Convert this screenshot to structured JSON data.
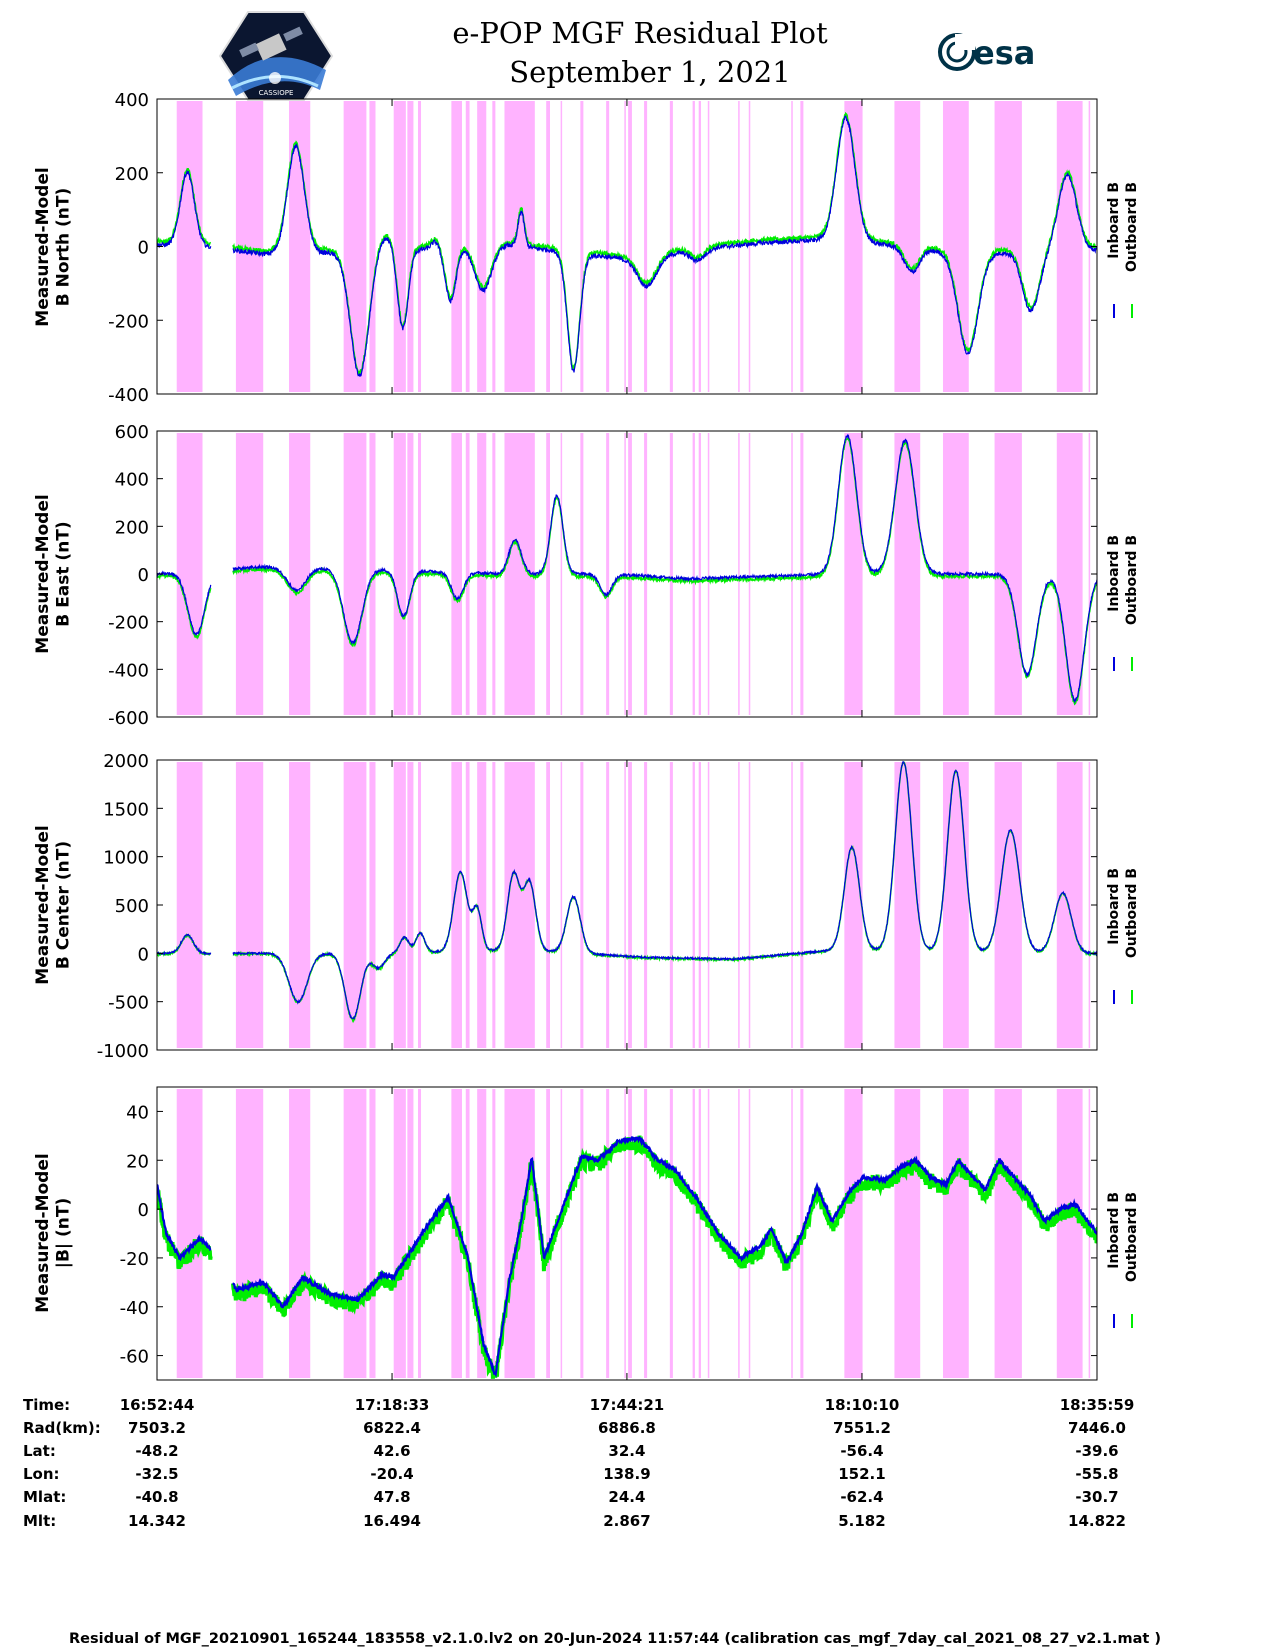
{
  "header": {
    "title": "e-POP MGF Residual Plot",
    "date": "September 1, 2021",
    "logo_left": "CASSIOPE",
    "logo_right": "esa"
  },
  "colors": {
    "inboard": "#0000dd",
    "outboard": "#00ee00",
    "shade": "#ffb3ff",
    "axis": "#000000"
  },
  "legend": {
    "inboard": "Inboard B",
    "outboard": "Outboard B"
  },
  "chart_data": [
    {
      "type": "line",
      "id": "north",
      "ylabel_line1": "Measured-Model",
      "ylabel_line2": "B North (nT)",
      "ylim": [
        -400,
        400
      ],
      "yticks": [
        400,
        200,
        0,
        -200,
        -400
      ],
      "xlim": [
        0,
        6195
      ],
      "series_names": [
        "Inboard B",
        "Outboard B"
      ],
      "signal": {
        "baseline": [
          [
            0,
            5
          ],
          [
            300,
            0
          ],
          [
            700,
            -20
          ],
          [
            1400,
            -15
          ],
          [
            2300,
            5
          ],
          [
            2800,
            -20
          ],
          [
            3200,
            -40
          ],
          [
            3500,
            -10
          ],
          [
            4000,
            10
          ],
          [
            4500,
            20
          ],
          [
            5300,
            -20
          ],
          [
            6195,
            -10
          ]
        ],
        "bumps": [
          [
            200,
            200,
            45
          ],
          [
            915,
            290,
            55
          ],
          [
            1335,
            -335,
            60
          ],
          [
            1505,
            40,
            50
          ],
          [
            1620,
            -215,
            35
          ],
          [
            1835,
            20,
            25
          ],
          [
            1935,
            -145,
            35
          ],
          [
            2150,
            -120,
            55
          ],
          [
            2400,
            95,
            20
          ],
          [
            2745,
            -320,
            40
          ],
          [
            3230,
            -70,
            60
          ],
          [
            3560,
            -30,
            50
          ],
          [
            4540,
            330,
            60
          ],
          [
            4975,
            -65,
            50
          ],
          [
            5345,
            -270,
            65
          ],
          [
            5760,
            -160,
            55
          ],
          [
            6000,
            205,
            60
          ]
        ]
      },
      "outboard_offset": 8,
      "noise": 6
    },
    {
      "type": "line",
      "id": "east",
      "ylabel_line1": "Measured-Model",
      "ylabel_line2": "B East (nT)",
      "ylim": [
        -600,
        600
      ],
      "yticks": [
        600,
        400,
        200,
        0,
        -200,
        -400,
        -600
      ],
      "xlim": [
        0,
        6195
      ],
      "series_names": [
        "Inboard B",
        "Outboard B"
      ],
      "signal": {
        "baseline": [
          [
            0,
            0
          ],
          [
            700,
            30
          ],
          [
            1400,
            20
          ],
          [
            2300,
            0
          ],
          [
            3000,
            0
          ],
          [
            3500,
            -20
          ],
          [
            4500,
            0
          ],
          [
            5300,
            0
          ],
          [
            6195,
            0
          ]
        ],
        "bumps": [
          [
            260,
            -265,
            55
          ],
          [
            920,
            -95,
            60
          ],
          [
            1290,
            -310,
            60
          ],
          [
            1625,
            -190,
            40
          ],
          [
            1980,
            -110,
            40
          ],
          [
            2360,
            145,
            40
          ],
          [
            2635,
            330,
            40
          ],
          [
            2960,
            -85,
            40
          ],
          [
            4550,
            580,
            60
          ],
          [
            4930,
            560,
            65
          ],
          [
            5735,
            -420,
            60
          ],
          [
            6050,
            -530,
            60
          ]
        ]
      },
      "outboard_offset": -10,
      "noise": 6
    },
    {
      "type": "line",
      "id": "center",
      "ylabel_line1": "Measured-Model",
      "ylabel_line2": "B Center (nT)",
      "ylim": [
        -1000,
        2000
      ],
      "yticks": [
        2000,
        1500,
        1000,
        500,
        0,
        -500,
        -1000
      ],
      "xlim": [
        0,
        6195
      ],
      "series_names": [
        "Inboard B",
        "Outboard B"
      ],
      "signal": {
        "baseline": [
          [
            0,
            0
          ],
          [
            1500,
            0
          ],
          [
            2400,
            40
          ],
          [
            3200,
            -40
          ],
          [
            3800,
            -60
          ],
          [
            4500,
            40
          ],
          [
            6195,
            0
          ]
        ],
        "bumps": [
          [
            200,
            190,
            40
          ],
          [
            930,
            -500,
            60
          ],
          [
            1290,
            -680,
            50
          ],
          [
            1460,
            -150,
            40
          ],
          [
            1630,
            160,
            30
          ],
          [
            1735,
            200,
            30
          ],
          [
            2000,
            820,
            45
          ],
          [
            2110,
            420,
            30
          ],
          [
            2350,
            780,
            40
          ],
          [
            2455,
            700,
            40
          ],
          [
            2745,
            580,
            45
          ],
          [
            4580,
            1060,
            50
          ],
          [
            4920,
            1950,
            55
          ],
          [
            5265,
            1870,
            55
          ],
          [
            5625,
            1260,
            60
          ],
          [
            5970,
            620,
            55
          ]
        ]
      },
      "outboard_offset": -6,
      "noise": 10
    },
    {
      "type": "line",
      "id": "total",
      "ylabel_line1": "Measured-Model",
      "ylabel_line2": "|B| (nT)",
      "ylim": [
        -70,
        50
      ],
      "yticks": [
        40,
        20,
        0,
        -20,
        -40,
        -60
      ],
      "xlim": [
        0,
        6195
      ],
      "series_names": [
        "Inboard B",
        "Outboard B"
      ],
      "points": [
        [
          0,
          10
        ],
        [
          60,
          -10
        ],
        [
          150,
          -20
        ],
        [
          280,
          -12
        ],
        [
          420,
          -20
        ],
        [
          520,
          -33
        ],
        [
          700,
          -30
        ],
        [
          830,
          -40
        ],
        [
          960,
          -28
        ],
        [
          1150,
          -35
        ],
        [
          1320,
          -37
        ],
        [
          1480,
          -27
        ],
        [
          1560,
          -28
        ],
        [
          1800,
          -5
        ],
        [
          1920,
          5
        ],
        [
          2050,
          -20
        ],
        [
          2150,
          -55
        ],
        [
          2230,
          -68
        ],
        [
          2320,
          -30
        ],
        [
          2400,
          -5
        ],
        [
          2470,
          21
        ],
        [
          2550,
          -20
        ],
        [
          2700,
          5
        ],
        [
          2800,
          22
        ],
        [
          2900,
          20
        ],
        [
          3050,
          28
        ],
        [
          3180,
          29
        ],
        [
          3300,
          20
        ],
        [
          3400,
          17
        ],
        [
          3550,
          5
        ],
        [
          3700,
          -10
        ],
        [
          3850,
          -20
        ],
        [
          3980,
          -15
        ],
        [
          4050,
          -8
        ],
        [
          4150,
          -22
        ],
        [
          4250,
          -10
        ],
        [
          4350,
          9
        ],
        [
          4450,
          -5
        ],
        [
          4550,
          6
        ],
        [
          4650,
          13
        ],
        [
          4800,
          12
        ],
        [
          4900,
          17
        ],
        [
          5000,
          20
        ],
        [
          5100,
          13
        ],
        [
          5200,
          10
        ],
        [
          5280,
          20
        ],
        [
          5380,
          13
        ],
        [
          5460,
          8
        ],
        [
          5550,
          20
        ],
        [
          5650,
          13
        ],
        [
          5750,
          6
        ],
        [
          5850,
          -5
        ],
        [
          5950,
          0
        ],
        [
          6050,
          2
        ],
        [
          6195,
          -10
        ]
      ],
      "outboard_offset": -2,
      "outboard_spread": 3,
      "noise": 0.8
    }
  ],
  "x_axis": {
    "range_seconds": 6195,
    "tick_seconds": [
      0,
      1549,
      3097,
      4646,
      6195
    ]
  },
  "shaded_intervals": [
    [
      130,
      300
    ],
    [
      520,
      700
    ],
    [
      870,
      1010
    ],
    [
      1230,
      1380
    ],
    [
      1400,
      1440
    ],
    [
      1560,
      1640
    ],
    [
      1650,
      1690
    ],
    [
      1720,
      1740
    ],
    [
      1940,
      2010
    ],
    [
      2035,
      2060
    ],
    [
      2110,
      2170
    ],
    [
      2210,
      2230
    ],
    [
      2290,
      2490
    ],
    [
      2565,
      2590
    ],
    [
      2660,
      2670
    ],
    [
      2790,
      2810
    ],
    [
      2960,
      2980
    ],
    [
      3080,
      3090
    ],
    [
      3105,
      3130
    ],
    [
      3210,
      3230
    ],
    [
      3380,
      3400
    ],
    [
      3530,
      3545
    ],
    [
      3570,
      3585
    ],
    [
      3630,
      3640
    ],
    [
      3830,
      3840
    ],
    [
      3900,
      3910
    ],
    [
      4180,
      4190
    ],
    [
      4240,
      4260
    ],
    [
      4530,
      4650
    ],
    [
      4860,
      5030
    ],
    [
      5180,
      5350
    ],
    [
      5520,
      5700
    ],
    [
      5930,
      6100
    ],
    [
      6140,
      6150
    ]
  ],
  "info_table": {
    "row_labels": [
      "Time:",
      "Rad(km):",
      "Lat:",
      "Lon:",
      "Mlat:",
      "Mlt:"
    ],
    "columns": [
      [
        "16:52:44",
        "7503.2",
        "-48.2",
        "-32.5",
        "-40.8",
        "14.342"
      ],
      [
        "17:18:33",
        "6822.4",
        "42.6",
        "-20.4",
        "47.8",
        "16.494"
      ],
      [
        "17:44:21",
        "6886.8",
        "32.4",
        "138.9",
        "24.4",
        "2.867"
      ],
      [
        "18:10:10",
        "7551.2",
        "-56.4",
        "152.1",
        "-62.4",
        "5.182"
      ],
      [
        "18:35:59",
        "7446.0",
        "-39.6",
        "-55.8",
        "-30.7",
        "14.822"
      ]
    ]
  },
  "footer": "Residual of MGF_20210901_165244_183558_v2.1.0.lv2 on 20-Jun-2024 11:57:44 (calibration cas_mgf_7day_cal_2021_08_27_v2.1.mat )"
}
